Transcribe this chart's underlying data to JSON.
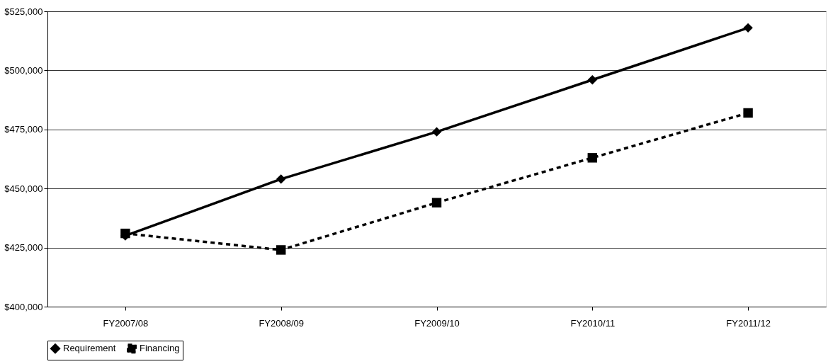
{
  "chart_data": {
    "type": "line",
    "categories": [
      "FY2007/08",
      "FY2008/09",
      "FY2009/10",
      "FY2010/11",
      "FY2011/12"
    ],
    "series": [
      {
        "name": "Requirement",
        "color": "#000000",
        "marker": "diamond",
        "line_style": "solid",
        "values": [
          430000,
          454000,
          474000,
          496000,
          518000
        ]
      },
      {
        "name": "Financing",
        "color": "#000000",
        "marker": "square",
        "line_style": "dashed",
        "values": [
          431000,
          424000,
          444000,
          463000,
          482000
        ]
      }
    ],
    "ylim": [
      400000,
      525000
    ],
    "yticks": [
      {
        "value": 400000,
        "label": "$400,000"
      },
      {
        "value": 425000,
        "label": "$425,000"
      },
      {
        "value": 450000,
        "label": "$450,000"
      },
      {
        "value": 475000,
        "label": "$475,000"
      },
      {
        "value": 500000,
        "label": "$500,000"
      },
      {
        "value": 525000,
        "label": "$525,000"
      }
    ],
    "grid": "y",
    "legend": "bottom"
  }
}
